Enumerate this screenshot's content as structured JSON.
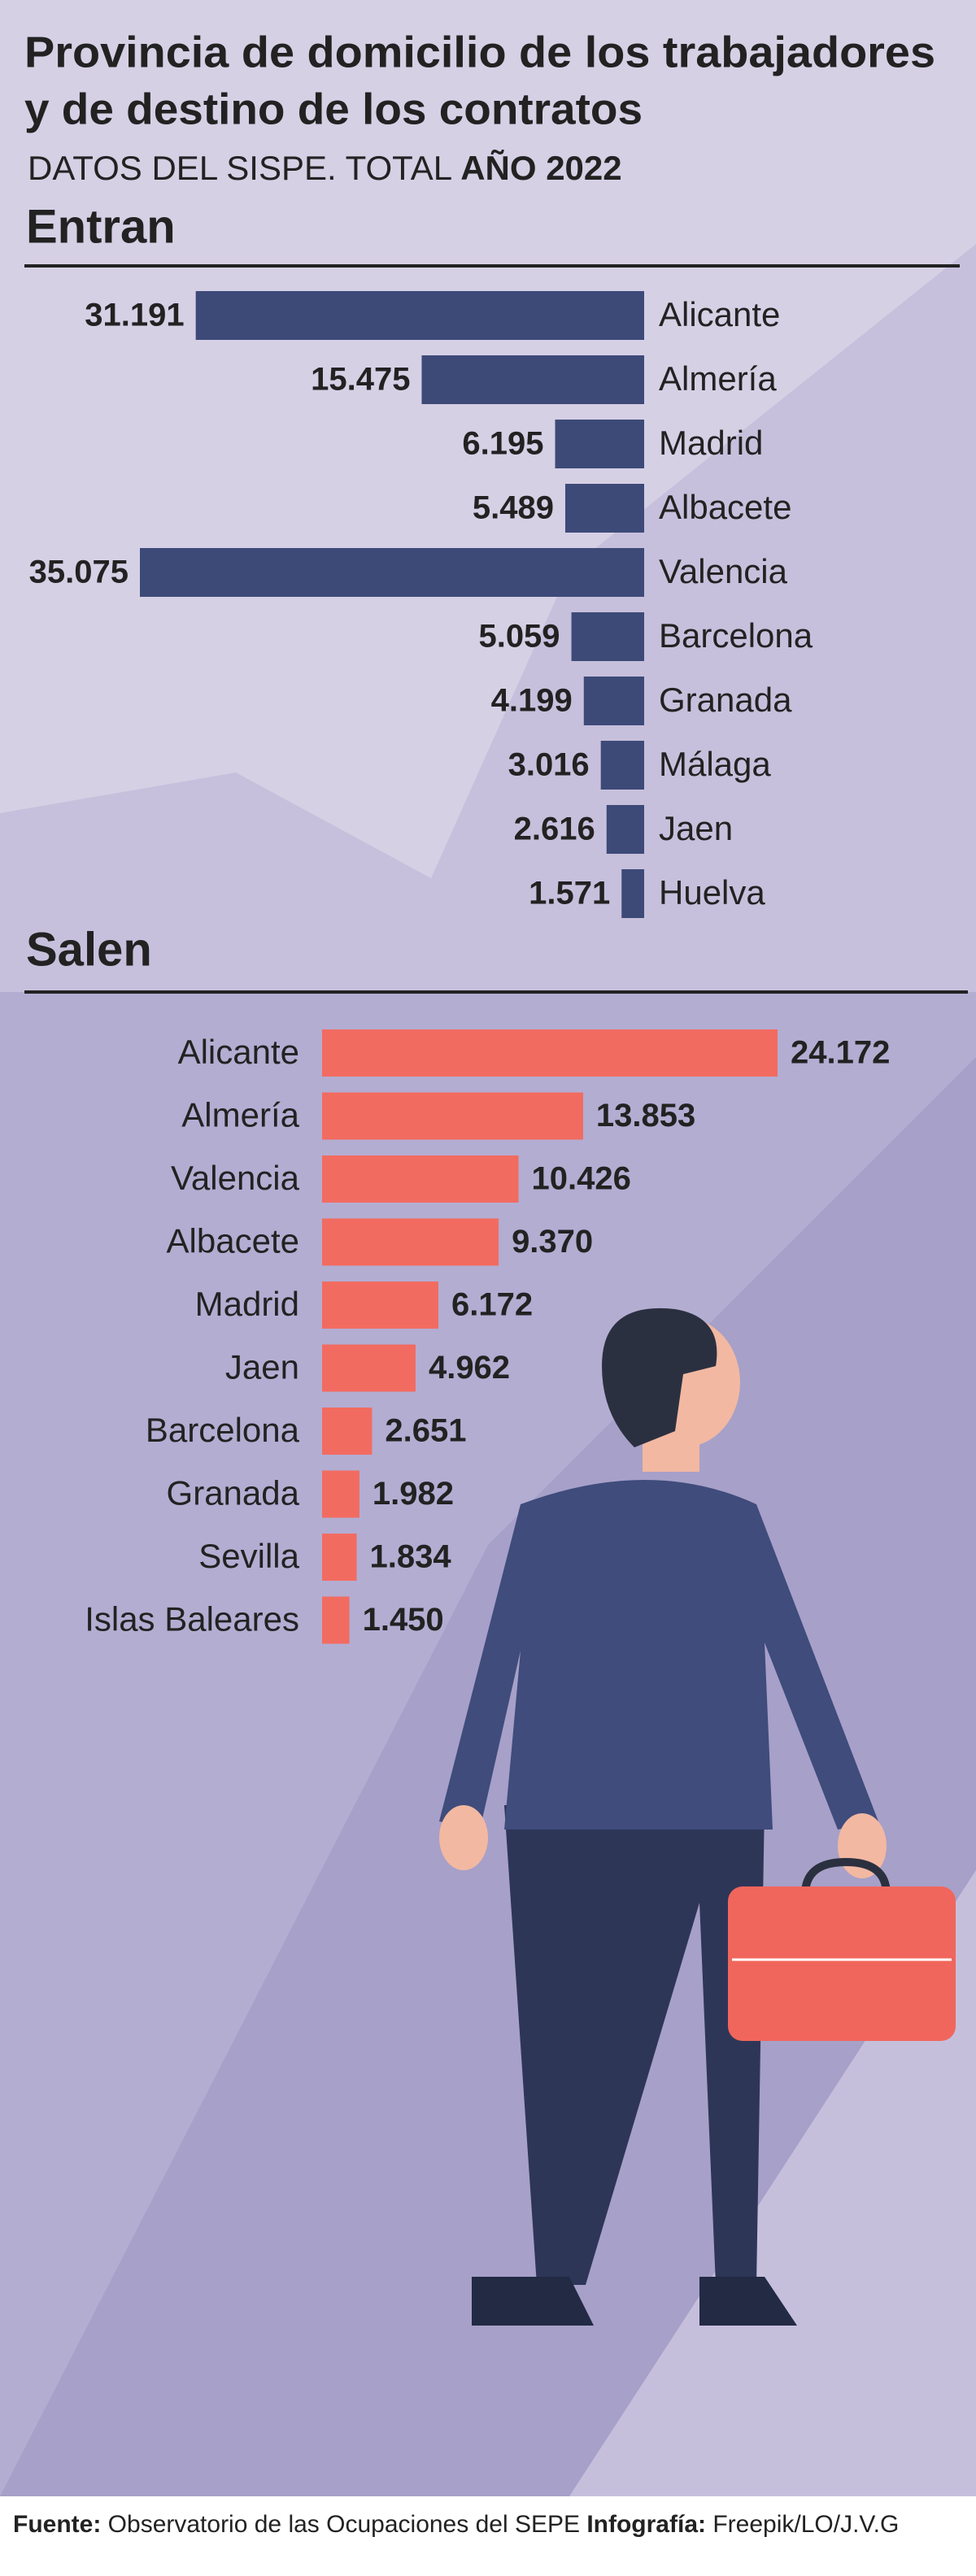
{
  "title": [
    "Provincia de domicilio de los trabajadores",
    "y de destino de los contratos"
  ],
  "subtitle": {
    "text": "DATOS DEL SISPE. TOTAL",
    "bold": "AÑO 2022"
  },
  "chart_data": [
    {
      "type": "bar",
      "title": "Entran",
      "title_color": "#3d4a78",
      "color": "#3d4a78",
      "bar_direction": "left",
      "categories": [
        "Alicante",
        "Almería",
        "Madrid",
        "Albacete",
        "Valencia",
        "Barcelona",
        "Granada",
        "Málaga",
        "Jaen",
        "Huelva"
      ],
      "values": [
        31191,
        15475,
        6195,
        5489,
        35075,
        5059,
        4199,
        3016,
        2616,
        1571
      ],
      "value_labels": [
        "31.191",
        "15.475",
        "6.195",
        "5.489",
        "35.075",
        "5.059",
        "4.199",
        "3.016",
        "2.616",
        "1.571"
      ]
    },
    {
      "type": "bar",
      "title": "Salen",
      "title_color": "#f06a5e",
      "color": "#f26b60",
      "bar_direction": "right",
      "categories": [
        "Alicante",
        "Almería",
        "Valencia",
        "Albacete",
        "Madrid",
        "Jaen",
        "Barcelona",
        "Granada",
        "Sevilla",
        "Islas Baleares"
      ],
      "values": [
        24172,
        13853,
        10426,
        9370,
        6172,
        4962,
        2651,
        1982,
        1834,
        1450
      ],
      "value_labels": [
        "24.172",
        "13.853",
        "10.426",
        "9.370",
        "6.172",
        "4.962",
        "2.651",
        "1.982",
        "1.834",
        "1.450"
      ]
    }
  ],
  "footer": {
    "source_label": "Fuente:",
    "source": "Observatorio de las Ocupaciones del SEPE",
    "credit_label": "Infografía:",
    "credit": "Freepik/LO/J.V.G"
  }
}
